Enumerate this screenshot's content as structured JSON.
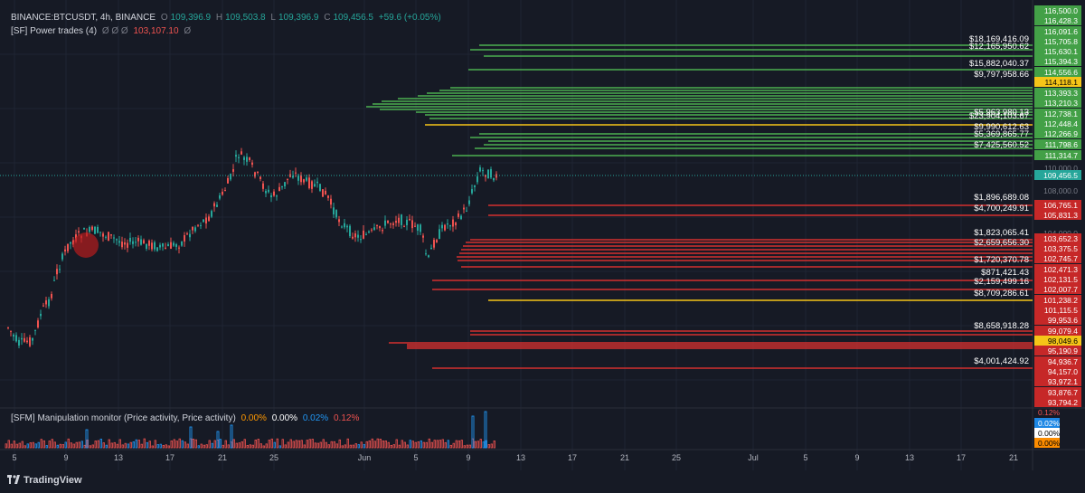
{
  "header": {
    "symbol": "BINANCE:BTCUSDT, 4h, BINANCE",
    "o_label": "O",
    "o": "109,396.9",
    "h_label": "H",
    "h": "109,503.8",
    "l_label": "L",
    "l": "109,396.9",
    "c_label": "C",
    "c": "109,456.5",
    "change": "+59.6 (+0.05%)"
  },
  "indicator1": {
    "name": "[SF] Power trades (4)",
    "vals": "Ø Ø Ø",
    "value": "103,107.10",
    "tail": "Ø"
  },
  "indicator2": {
    "name": "[SFM] Manipulation monitor (Price activity, Price activity)",
    "v1": "0.00%",
    "v2": "0.00%",
    "v3": "0.02%",
    "v4": "0.12%"
  },
  "brand": "TradingView",
  "colors": {
    "bg": "#161a25",
    "up": "#26a69a",
    "down": "#ef5350",
    "green_line": "#4caf50",
    "red_line": "#d32f2f",
    "yellow_line": "#f5c518"
  },
  "chart_data": {
    "type": "candlestick",
    "price_axis": {
      "ylim": [
        93700,
        116600
      ],
      "ticks": [
        "116,500.0",
        "116,428.3",
        "116,091.6",
        "115,705.8",
        "115,630.1",
        "115,394.3",
        "114,556.6",
        "114,118.1",
        "113,393.3",
        "113,210.3",
        "112,738.1",
        "112,448.4",
        "112,266.9",
        "111,798.6",
        "111,314.7",
        "110,000.0",
        "109,456.5",
        "108,000.0",
        "106,765.1",
        "105,831.3",
        "104,000.0",
        "103,652.3",
        "103,375.5",
        "102,745.7",
        "102,471.3",
        "102,131.5",
        "102,007.7",
        "101,238.2",
        "101,115.5",
        "99,953.6",
        "99,079.4",
        "98,049.6",
        "95,190.9",
        "94,936.7",
        "94,157.0",
        "93,972.1",
        "93,876.7",
        "93,794.2"
      ]
    },
    "x_ticks": [
      "5",
      "9",
      "13",
      "17",
      "21",
      "25",
      "Jun",
      "5",
      "9",
      "13",
      "17",
      "21",
      "25",
      "Jul",
      "5",
      "9",
      "13",
      "17",
      "21"
    ],
    "last_price": "109,456.5",
    "green_levels": [
      {
        "label": "$18,169,416.09"
      },
      {
        "label": "$12,165,950.62"
      },
      {
        "label": "$15,882,040.37"
      },
      {
        "label": "$9,797,958.66"
      },
      {
        "label": "$5,963,980.13"
      },
      {
        "label": "$23,904,103.67"
      },
      {
        "label": "$9,990,612.63"
      },
      {
        "label": "$5,369,865.77"
      },
      {
        "label": "$7,425,560.52"
      }
    ],
    "red_levels": [
      {
        "label": "$1,896,689.08"
      },
      {
        "label": "$4,700,249.91"
      },
      {
        "label": "$1,823,065.41"
      },
      {
        "label": "$2,659,656.30"
      },
      {
        "label": "$1,720,370.78"
      },
      {
        "label": "$871,421.43"
      },
      {
        "label": "$2,159,499.16"
      },
      {
        "label": "$8,709,286.61"
      },
      {
        "label": "$8,658,918.28"
      },
      {
        "label": "$4,001,424.92"
      }
    ],
    "osc_labels": [
      "0.12%",
      "0.02%",
      "0.00%",
      "0.00%"
    ]
  }
}
